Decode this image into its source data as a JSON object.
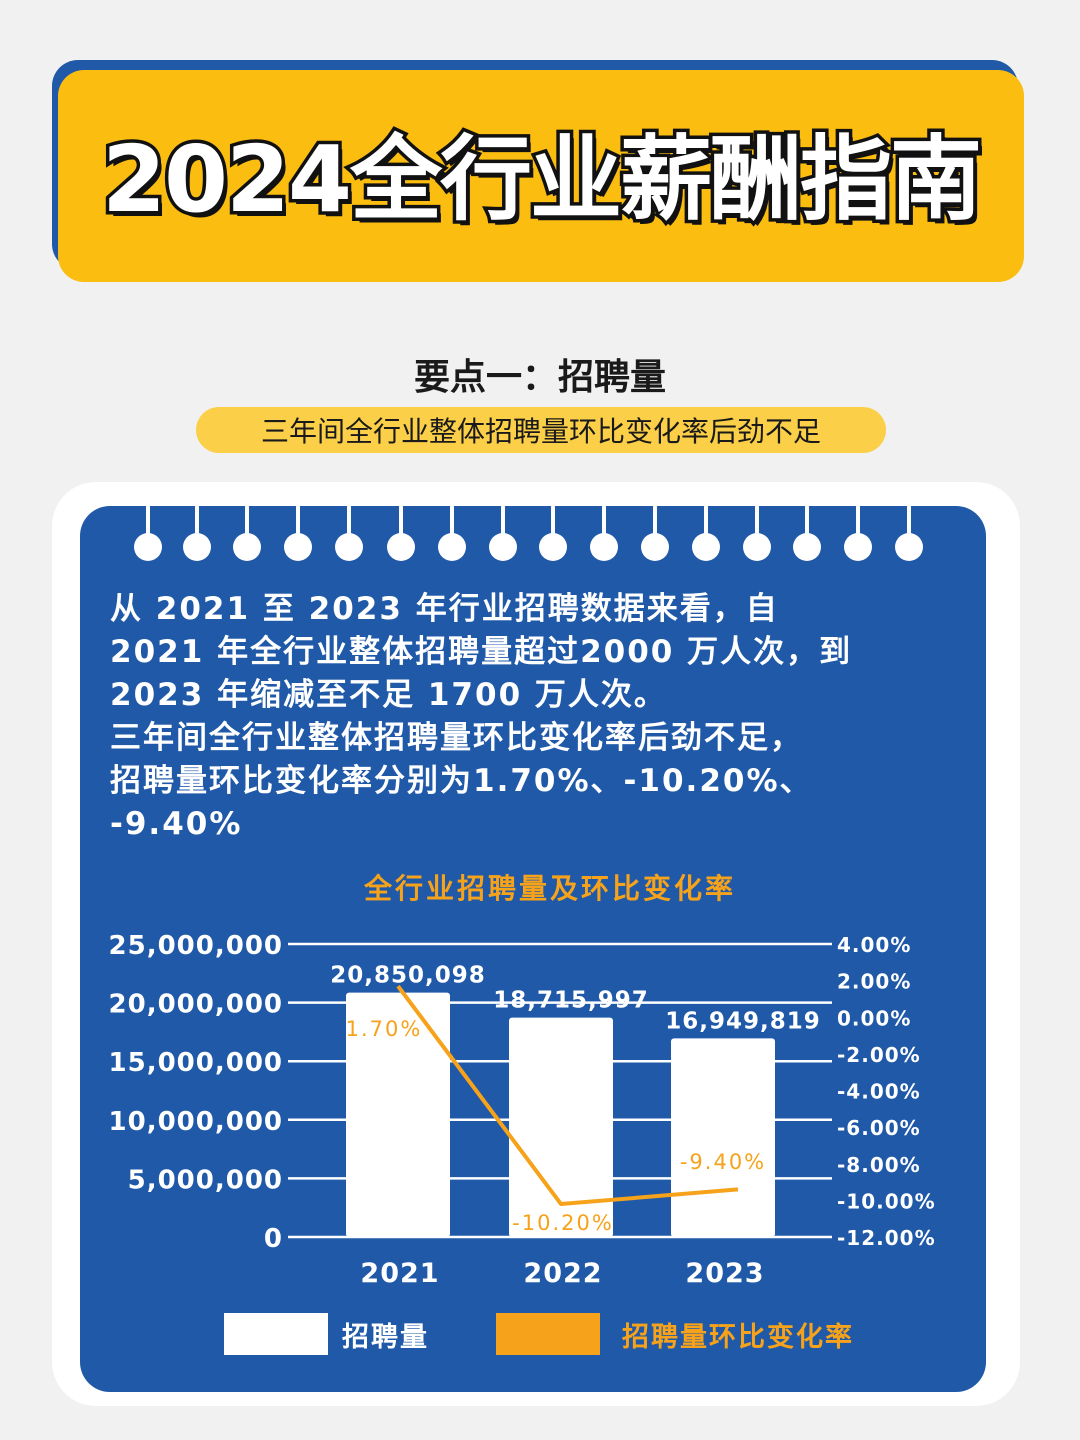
{
  "header": {
    "title": "2024全行业薪酬指南"
  },
  "section": {
    "title": "要点一：招聘量",
    "subtitle": "三年间全行业整体招聘量环比变化率后劲不足"
  },
  "paragraph": {
    "lines": [
      "从 2021 至 2023 年行业招聘数据来看，自",
      "2021 年全行业整体招聘量超过2000 万人次，到",
      "2023 年缩减至不足 1700 万人次。",
      "三年间全行业整体招聘量环比变化率后劲不足，",
      "招聘量环比变化率分别为1.70%、-10.20%、",
      "-9.40%"
    ]
  },
  "colors": {
    "brand_blue": "#1f59a8",
    "banner_yellow": "#fbbd10",
    "chart_title_orange": "#f6a21b",
    "line_orange": "#f6a21b",
    "bar_white": "#ffffff"
  },
  "chart_data": {
    "type": "bar",
    "title": "全行业招聘量及环比变化率",
    "categories": [
      "2021",
      "2022",
      "2023"
    ],
    "series": [
      {
        "name": "招聘量",
        "type": "bar",
        "axis": "left",
        "values": [
          20850098,
          18715997,
          16949819
        ],
        "labels": [
          "20,850,098",
          "18,715,997",
          "16,949,819"
        ]
      },
      {
        "name": "招聘量环比变化率",
        "type": "line",
        "axis": "right",
        "values": [
          1.7,
          -10.2,
          -9.4
        ],
        "labels": [
          "1.70%",
          "-10.20%",
          "-9.40%"
        ]
      }
    ],
    "y_left": {
      "ylim": [
        0,
        25000000
      ],
      "ticks": [
        "25,000,000",
        "20,000,000",
        "15,000,000",
        "10,000,000",
        "5,000,000",
        "0"
      ]
    },
    "y_right": {
      "ylim": [
        -12,
        4
      ],
      "ticks": [
        "4.00%",
        "2.00%",
        "0.00%",
        "-2.00%",
        "-4.00%",
        "-6.00%",
        "-8.00%",
        "-10.00%",
        "-12.00%"
      ]
    },
    "grid": true,
    "legend": "bottom"
  }
}
